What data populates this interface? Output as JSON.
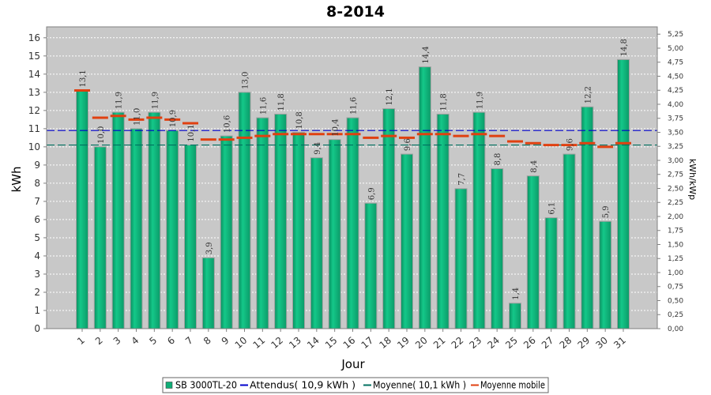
{
  "chart_data": {
    "type": "bar",
    "title": "8-2014",
    "xlabel": "Jour",
    "ylabel": "kWh",
    "ylabel_right": "kWh/kWp",
    "ylim": [
      0,
      16.6
    ],
    "ylim_right": [
      0,
      5.38
    ],
    "yticks": [
      "0",
      "1",
      "2",
      "3",
      "4",
      "5",
      "6",
      "7",
      "8",
      "9",
      "10",
      "11",
      "12",
      "13",
      "14",
      "15",
      "16"
    ],
    "yticks_right": [
      "0,00",
      "0,25",
      "0,50",
      "0,75",
      "1,00",
      "1,25",
      "1,50",
      "1,75",
      "2,00",
      "2,25",
      "2,50",
      "2,75",
      "3,00",
      "3,25",
      "3,50",
      "3,75",
      "4,00",
      "4,25",
      "4,50",
      "4,75",
      "5,00",
      "5,25"
    ],
    "grid": true,
    "legend_position": "bottom",
    "categories": [
      "1",
      "2",
      "3",
      "4",
      "5",
      "6",
      "7",
      "8",
      "9",
      "10",
      "11",
      "12",
      "13",
      "14",
      "15",
      "16",
      "17",
      "18",
      "19",
      "20",
      "21",
      "22",
      "23",
      "24",
      "25",
      "26",
      "27",
      "28",
      "29",
      "30",
      "31"
    ],
    "series": [
      {
        "name": "SB 3000TL-20",
        "type": "bar",
        "color": "#0fae77",
        "values": [
          13.1,
          10.0,
          11.9,
          11.0,
          11.9,
          10.9,
          10.1,
          3.9,
          10.6,
          13.0,
          11.6,
          11.8,
          10.8,
          9.4,
          10.4,
          11.6,
          6.9,
          12.1,
          9.6,
          14.4,
          11.8,
          7.7,
          11.9,
          8.8,
          1.4,
          8.4,
          6.1,
          9.6,
          12.2,
          5.9,
          14.8
        ],
        "labels": [
          "13,1",
          "10,0",
          "11,9",
          "11,0",
          "11,9",
          "10,9",
          "10,1",
          "3,9",
          "10,6",
          "13,0",
          "11,6",
          "11,8",
          "10,8",
          "9,4",
          "10,4",
          "11,6",
          "6,9",
          "12,1",
          "9,6",
          "14,4",
          "11,8",
          "7,7",
          "11,9",
          "8,8",
          "1,4",
          "8,4",
          "6,1",
          "9,6",
          "12,2",
          "5,9",
          "14,8"
        ]
      },
      {
        "name": "Attendus( 10,9 kWh )",
        "type": "hline",
        "color": "#0000cc",
        "value": 10.9
      },
      {
        "name": "Moyenne( 10,1 kWh )",
        "type": "hline",
        "color": "#007060",
        "value": 10.1
      },
      {
        "name": "Moyenne mobile",
        "type": "step",
        "color": "#e04010",
        "values": [
          13.1,
          11.6,
          11.7,
          11.5,
          11.6,
          11.5,
          11.3,
          10.4,
          10.4,
          10.5,
          10.6,
          10.7,
          10.7,
          10.7,
          10.7,
          10.7,
          10.5,
          10.6,
          10.5,
          10.7,
          10.7,
          10.6,
          10.7,
          10.6,
          10.3,
          10.2,
          10.1,
          10.1,
          10.2,
          10.0,
          10.2
        ]
      }
    ],
    "colors": {
      "plot_background": "#c8c8c8",
      "bar_edge": "#a0a0a0"
    }
  }
}
